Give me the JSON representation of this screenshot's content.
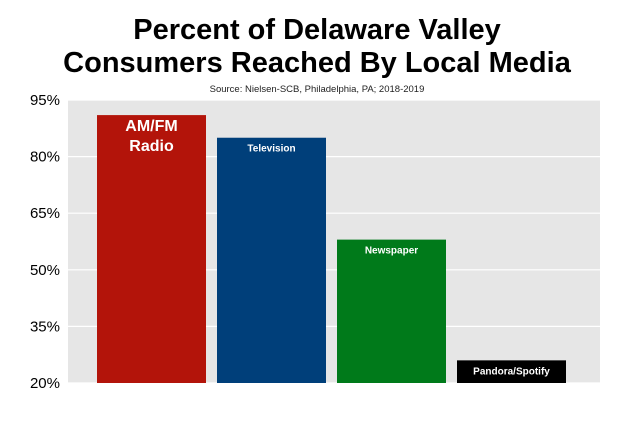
{
  "chart_data": {
    "type": "bar",
    "title_lines": [
      "Percent of Delaware Valley",
      "Consumers Reached By Local Media"
    ],
    "subtitle": "Source: Nielsen-SCB, Philadelphia, PA; 2018-2019",
    "categories": [
      "AM/FM Radio",
      "Television",
      "Newspaper",
      "Pandora/Spotify"
    ],
    "bar_labels": [
      [
        "AM/FM",
        "Radio"
      ],
      [
        "Television"
      ],
      [
        "Newspaper"
      ],
      [
        "Pandora/Spotify"
      ]
    ],
    "values": [
      91,
      85,
      58,
      26
    ],
    "colors": [
      "#b3140a",
      "#003f7a",
      "#007a1a",
      "#000000"
    ],
    "yticks": [
      "95%",
      "80%",
      "65%",
      "50%",
      "35%",
      "20%"
    ],
    "ylim": [
      20,
      95
    ],
    "grid": true,
    "xlabel": "",
    "ylabel": ""
  }
}
